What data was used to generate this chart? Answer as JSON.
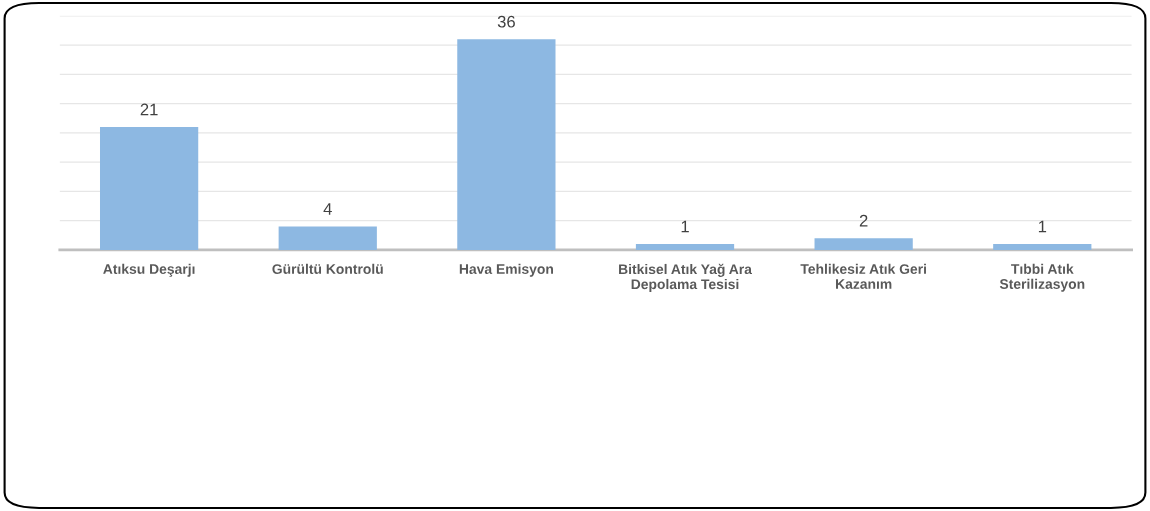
{
  "chart_data": {
    "type": "bar",
    "categories": [
      "Atıksu Deşarjı",
      "Gürültü Kontrolü",
      "Hava Emisyon",
      "Bitkisel Atık Yağ Ara Depolama Tesisi",
      "Tehlikesiz Atık Geri Kazanım",
      "Tıbbi Atık Sterilizasyon"
    ],
    "values": [
      21,
      4,
      36,
      1,
      2,
      1
    ],
    "color": "#8db8e2",
    "data_labels": true,
    "ylim": [
      0,
      40
    ],
    "yticks": [
      {
        "value": 0,
        "label": null
      },
      {
        "value": 5,
        "label": null
      },
      {
        "value": 10,
        "label": null
      },
      {
        "value": 15,
        "label": null
      },
      {
        "value": 20,
        "label": null
      },
      {
        "value": 25,
        "label": null
      },
      {
        "value": 30,
        "label": null
      },
      {
        "value": 35,
        "label": null
      },
      {
        "value": 40,
        "label": null
      }
    ],
    "tick_labels": "x",
    "grid": "y"
  }
}
